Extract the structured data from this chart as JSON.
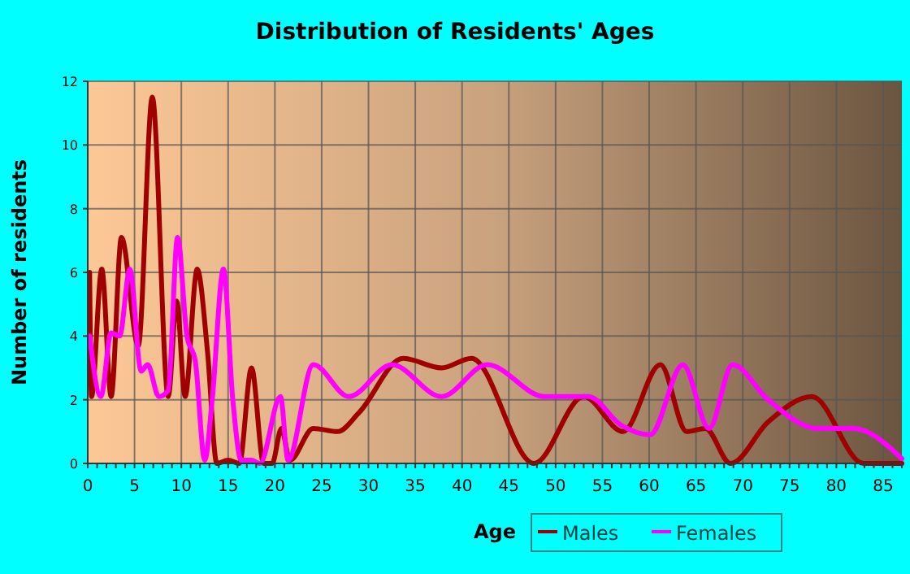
{
  "chart_data": {
    "type": "line",
    "title": "Distribution of Residents' Ages",
    "xlabel": "Age",
    "ylabel": "Number of residents",
    "xlim": [
      0,
      87
    ],
    "xticks": [
      0,
      5,
      10,
      15,
      20,
      25,
      30,
      35,
      40,
      45,
      50,
      55,
      60,
      65,
      70,
      75,
      80,
      85
    ],
    "ylim": [
      0,
      12
    ],
    "yticks": [
      0,
      2,
      4,
      6,
      8,
      10,
      12
    ],
    "grid": true,
    "legend": "bottom right",
    "series": [
      {
        "name": "Males",
        "color": "#a00000",
        "x": [
          0.2,
          0.4,
          1.5,
          2.5,
          3.6,
          5.4,
          6.9,
          8.6,
          9.5,
          10.4,
          11.7,
          12.8,
          13.8,
          15,
          16.2,
          17.5,
          18.8,
          19.7,
          20.7,
          21.6,
          24.1,
          26.7,
          29,
          33.7,
          37.8,
          41,
          47.7,
          53,
          57.2,
          61.2,
          64,
          66,
          68.7,
          72.7,
          77.4,
          82.9,
          87
        ],
        "values": [
          6,
          2.1,
          6.1,
          2.1,
          7.1,
          3.7,
          11.5,
          2.1,
          5.1,
          2.1,
          6.1,
          3.5,
          0,
          0.1,
          0,
          3,
          0,
          0,
          1.1,
          0.1,
          1.1,
          1,
          1.6,
          3.3,
          3,
          3.3,
          0,
          2.1,
          1,
          3.1,
          1,
          1.1,
          0,
          1.3,
          2.1,
          0,
          0
        ]
      },
      {
        "name": "Females",
        "color": "#ff00ff",
        "x": [
          0.2,
          1.4,
          2.5,
          3.4,
          4.5,
          5.7,
          6.4,
          7.6,
          8.6,
          9.6,
          10.6,
          11.5,
          12.5,
          13.3,
          14.5,
          15.5,
          16.4,
          17.5,
          18.4,
          20.6,
          21.4,
          24.1,
          27.9,
          32.5,
          37.8,
          42.7,
          48.8,
          53.5,
          57,
          60.1,
          63.6,
          66.4,
          68.9,
          72.7,
          78,
          81.8,
          87
        ],
        "values": [
          4,
          2.1,
          4.1,
          4,
          6.1,
          2.9,
          3.1,
          2.1,
          2.3,
          7.1,
          4,
          3.2,
          0.1,
          2,
          6.1,
          2,
          0.1,
          0.1,
          0,
          2.1,
          0.1,
          3.1,
          2.1,
          3.1,
          2.1,
          3.1,
          2.1,
          2.1,
          1.2,
          0.9,
          3.1,
          1.1,
          3.1,
          2,
          1.1,
          1.1,
          0.15
        ]
      }
    ]
  }
}
